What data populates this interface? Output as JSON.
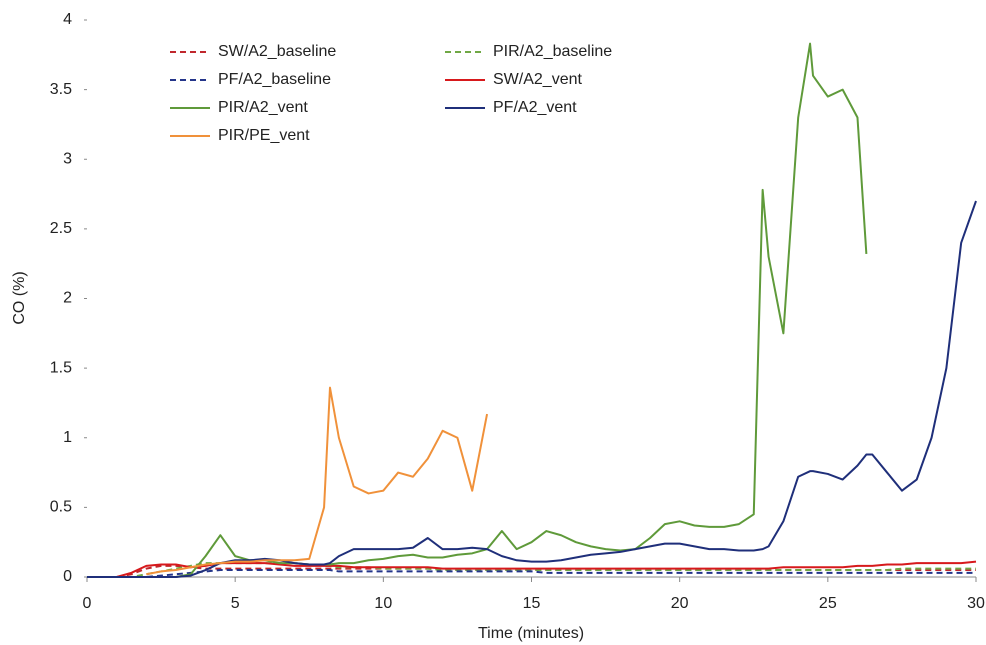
{
  "chart_data": {
    "type": "line",
    "x_label": "Time (minutes)",
    "y_label": "CO (%)",
    "x": [
      0,
      0.5,
      1,
      1.5,
      2,
      2.5,
      3,
      3.5,
      4,
      4.5,
      5,
      5.5,
      6,
      6.5,
      7,
      7.5,
      8,
      8.2,
      8.5,
      9,
      9.5,
      10,
      10.5,
      11,
      11.5,
      12,
      12.5,
      13,
      13.5,
      14,
      14.5,
      15,
      15.5,
      16,
      16.5,
      17,
      17.5,
      18,
      18.5,
      19,
      19.5,
      20,
      20.5,
      21,
      21.5,
      22,
      22.5,
      22.8,
      23,
      23.5,
      24,
      24.4,
      24.5,
      25,
      25.5,
      26,
      26.3,
      26.5,
      27,
      27.5,
      28,
      28.5,
      29,
      29.5,
      30
    ],
    "series": [
      {
        "name": "SW/A2_baseline",
        "color": "#c0272d",
        "dash": true,
        "values": [
          0,
          0,
          0,
          0.02,
          0.06,
          0.08,
          0.08,
          0.07,
          0.06,
          0.06,
          0.06,
          0.06,
          0.06,
          0.06,
          0.06,
          0.06,
          0.06,
          0.06,
          0.06,
          0.06,
          0.06,
          0.06,
          0.06,
          0.06,
          0.06,
          0.06,
          0.05,
          0.05,
          0.05,
          0.05,
          0.05,
          0.05,
          0.05,
          0.05,
          0.05,
          0.05,
          0.05,
          0.05,
          0.05,
          0.05,
          0.05,
          0.05,
          0.05,
          0.05,
          0.05,
          0.05,
          0.05,
          0.05,
          0.05,
          0.05,
          0.05,
          0.05,
          0.05,
          0.05,
          0.05,
          0.05,
          0.05,
          0.05,
          0.05,
          0.05,
          0.05,
          0.05,
          0.05,
          0.05,
          0.05
        ]
      },
      {
        "name": "PIR/A2_baseline",
        "color": "#70a845",
        "dash": true,
        "values": [
          0,
          0,
          0,
          0,
          0.02,
          0.04,
          0.06,
          0.08,
          0.1,
          0.1,
          0.1,
          0.1,
          0.1,
          0.1,
          0.1,
          0.09,
          0.08,
          0.08,
          0.07,
          0.07,
          0.07,
          0.06,
          0.06,
          0.06,
          0.06,
          0.05,
          0.05,
          0.05,
          0.05,
          0.05,
          0.05,
          0.05,
          0.05,
          0.05,
          0.05,
          0.05,
          0.05,
          0.05,
          0.05,
          0.05,
          0.05,
          0.05,
          0.05,
          0.05,
          0.05,
          0.05,
          0.05,
          0.05,
          0.05,
          0.05,
          0.05,
          0.05,
          0.05,
          0.05,
          0.05,
          0.05,
          0.05,
          0.05,
          0.05,
          0.06,
          0.06,
          0.06,
          0.06,
          0.06,
          0.06
        ]
      },
      {
        "name": "PF/A2_baseline",
        "color": "#24358a",
        "dash": true,
        "values": [
          0,
          0,
          0,
          0,
          0,
          0.01,
          0.02,
          0.03,
          0.04,
          0.05,
          0.05,
          0.05,
          0.05,
          0.05,
          0.05,
          0.05,
          0.05,
          0.05,
          0.04,
          0.04,
          0.04,
          0.04,
          0.04,
          0.04,
          0.04,
          0.04,
          0.04,
          0.04,
          0.04,
          0.04,
          0.04,
          0.04,
          0.03,
          0.03,
          0.03,
          0.03,
          0.03,
          0.03,
          0.03,
          0.03,
          0.03,
          0.03,
          0.03,
          0.03,
          0.03,
          0.03,
          0.03,
          0.03,
          0.03,
          0.03,
          0.03,
          0.03,
          0.03,
          0.03,
          0.03,
          0.03,
          0.03,
          0.03,
          0.03,
          0.03,
          0.03,
          0.03,
          0.03,
          0.03,
          0.03
        ]
      },
      {
        "name": "SW/A2_vent",
        "color": "#d7191c",
        "dash": false,
        "values": [
          0,
          0,
          0,
          0.03,
          0.08,
          0.09,
          0.09,
          0.07,
          0.08,
          0.1,
          0.1,
          0.1,
          0.1,
          0.09,
          0.08,
          0.08,
          0.08,
          0.08,
          0.08,
          0.07,
          0.07,
          0.07,
          0.07,
          0.07,
          0.07,
          0.06,
          0.06,
          0.06,
          0.06,
          0.06,
          0.06,
          0.06,
          0.06,
          0.06,
          0.06,
          0.06,
          0.06,
          0.06,
          0.06,
          0.06,
          0.06,
          0.06,
          0.06,
          0.06,
          0.06,
          0.06,
          0.06,
          0.06,
          0.06,
          0.07,
          0.07,
          0.07,
          0.07,
          0.07,
          0.07,
          0.08,
          0.08,
          0.08,
          0.09,
          0.09,
          0.1,
          0.1,
          0.1,
          0.1,
          0.11
        ]
      },
      {
        "name": "PIR/A2_vent",
        "color": "#5f9a3a",
        "dash": false,
        "values": [
          0,
          0,
          0,
          0,
          0,
          0,
          0,
          0.02,
          0.15,
          0.3,
          0.15,
          0.12,
          0.12,
          0.1,
          0.1,
          0.09,
          0.09,
          0.09,
          0.1,
          0.1,
          0.12,
          0.13,
          0.15,
          0.16,
          0.14,
          0.14,
          0.16,
          0.17,
          0.2,
          0.33,
          0.2,
          0.25,
          0.33,
          0.3,
          0.25,
          0.22,
          0.2,
          0.19,
          0.2,
          0.28,
          0.38,
          0.4,
          0.37,
          0.36,
          0.36,
          0.38,
          0.45,
          2.78,
          2.3,
          1.75,
          3.3,
          3.83,
          3.6,
          3.45,
          3.5,
          3.3,
          2.32,
          null,
          null,
          null,
          null,
          null,
          null,
          null,
          null
        ]
      },
      {
        "name": "PF/A2_vent",
        "color": "#1f2f7a",
        "dash": false,
        "values": [
          0,
          0,
          0,
          0,
          0,
          0,
          0,
          0.01,
          0.05,
          0.1,
          0.12,
          0.12,
          0.13,
          0.12,
          0.1,
          0.09,
          0.09,
          0.1,
          0.15,
          0.2,
          0.2,
          0.2,
          0.2,
          0.21,
          0.28,
          0.2,
          0.2,
          0.21,
          0.2,
          0.15,
          0.12,
          0.11,
          0.11,
          0.12,
          0.14,
          0.16,
          0.17,
          0.18,
          0.2,
          0.22,
          0.24,
          0.24,
          0.22,
          0.2,
          0.2,
          0.19,
          0.19,
          0.2,
          0.22,
          0.4,
          0.72,
          0.76,
          0.76,
          0.74,
          0.7,
          0.8,
          0.88,
          0.88,
          0.75,
          0.62,
          0.7,
          1.0,
          1.5,
          2.4,
          2.7
        ]
      },
      {
        "name": "PIR/PE_vent",
        "color": "#f0913a",
        "dash": false,
        "values": [
          null,
          null,
          null,
          null,
          0.02,
          0.04,
          0.05,
          0.07,
          0.09,
          0.1,
          0.11,
          0.11,
          0.12,
          0.12,
          0.12,
          0.13,
          0.5,
          1.36,
          1.0,
          0.65,
          0.6,
          0.62,
          0.75,
          0.72,
          0.85,
          1.05,
          1.0,
          0.62,
          1.17,
          null,
          null,
          null,
          null,
          null,
          null,
          null,
          null,
          null,
          null,
          null,
          null,
          null,
          null,
          null,
          null,
          null,
          null,
          null,
          null,
          null,
          null,
          null,
          null,
          null,
          null,
          null,
          null,
          null,
          null,
          null,
          null,
          null,
          null,
          null,
          null
        ]
      }
    ],
    "xlim": [
      0,
      30
    ],
    "xticks": [
      0,
      5,
      10,
      15,
      20,
      25,
      30
    ],
    "ylim": [
      0,
      4
    ],
    "yticks": [
      0,
      0.5,
      1,
      1.5,
      2,
      2.5,
      3,
      3.5,
      4
    ],
    "grid": false,
    "legend": "upper left"
  }
}
